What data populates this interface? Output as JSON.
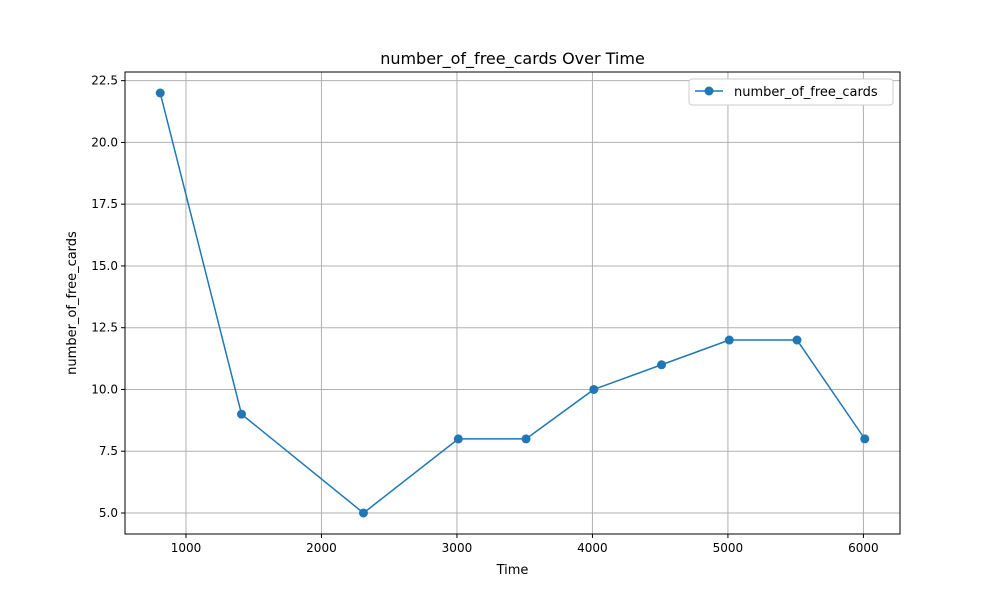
{
  "chart_data": {
    "type": "line",
    "title": "number_of_free_cards Over Time",
    "xlabel": "Time",
    "ylabel": "number_of_free_cards",
    "xlim": [
      550,
      6270
    ],
    "ylim": [
      4.15,
      22.85
    ],
    "x_ticks": [
      1000,
      2000,
      3000,
      4000,
      5000,
      6000
    ],
    "y_ticks": [
      5.0,
      7.5,
      10.0,
      12.5,
      15.0,
      17.5,
      20.0,
      22.5
    ],
    "x_tick_labels": [
      "1000",
      "2000",
      "3000",
      "4000",
      "5000",
      "6000"
    ],
    "y_tick_labels": [
      "5.0",
      "7.5",
      "10.0",
      "12.5",
      "15.0",
      "17.5",
      "20.0",
      "22.5"
    ],
    "grid": true,
    "legend_position": "top-right",
    "series": [
      {
        "name": "number_of_free_cards",
        "color": "#1f77b4",
        "marker": "circle",
        "x": [
          810,
          1410,
          2310,
          3010,
          3510,
          4010,
          4510,
          5010,
          5510,
          6010
        ],
        "y": [
          22,
          9,
          5,
          8,
          8,
          10,
          11,
          12,
          12,
          8
        ]
      }
    ]
  }
}
